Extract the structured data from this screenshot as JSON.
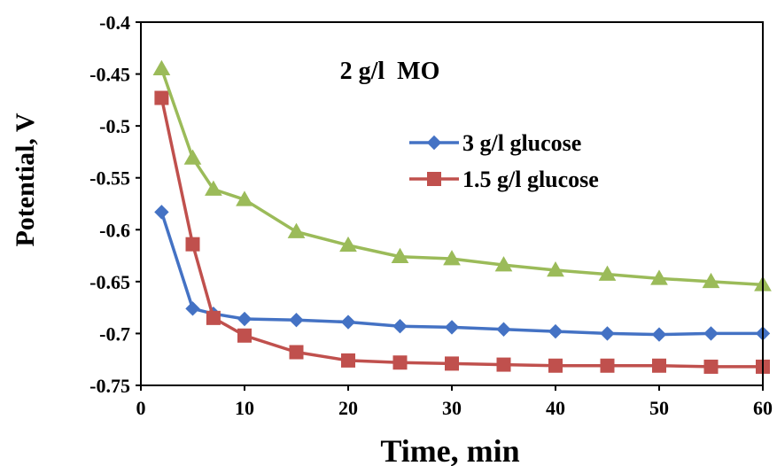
{
  "chart_data": {
    "type": "line",
    "title": "",
    "annotation": "2 g/l  MO",
    "xlabel": "Time, min",
    "ylabel": "Potential, V",
    "xlim": [
      0,
      60
    ],
    "ylim": [
      -0.75,
      -0.4
    ],
    "x_ticks": [
      "0",
      "10",
      "20",
      "30",
      "40",
      "50",
      "60"
    ],
    "y_ticks": [
      "-0.4",
      "-0.45",
      "-0.5",
      "-0.55",
      "-0.6",
      "-0.65",
      "-0.7",
      "-0.75"
    ],
    "grid": false,
    "legend_position": "right",
    "x": [
      2,
      5,
      7,
      10,
      15,
      20,
      25,
      30,
      35,
      40,
      45,
      50,
      55,
      60
    ],
    "series": [
      {
        "name": "3 g/l  glucose",
        "color": "#4472C4",
        "marker": "diamond",
        "values": [
          -0.583,
          -0.676,
          -0.681,
          -0.686,
          -0.687,
          -0.689,
          -0.693,
          -0.694,
          -0.696,
          -0.698,
          -0.7,
          -0.701,
          -0.7,
          -0.7
        ]
      },
      {
        "name": "1.5 g/l  glucose",
        "color": "#C0504D",
        "marker": "square",
        "values": [
          -0.473,
          -0.614,
          -0.685,
          -0.702,
          -0.718,
          -0.726,
          -0.728,
          -0.729,
          -0.73,
          -0.731,
          -0.731,
          -0.731,
          -0.732,
          -0.732
        ]
      },
      {
        "color": "#9BBB59",
        "marker": "triangle",
        "values": [
          -0.445,
          -0.531,
          -0.561,
          -0.571,
          -0.602,
          -0.615,
          -0.626,
          -0.628,
          -0.634,
          -0.639,
          -0.643,
          -0.647,
          -0.65,
          -0.653
        ]
      }
    ]
  }
}
